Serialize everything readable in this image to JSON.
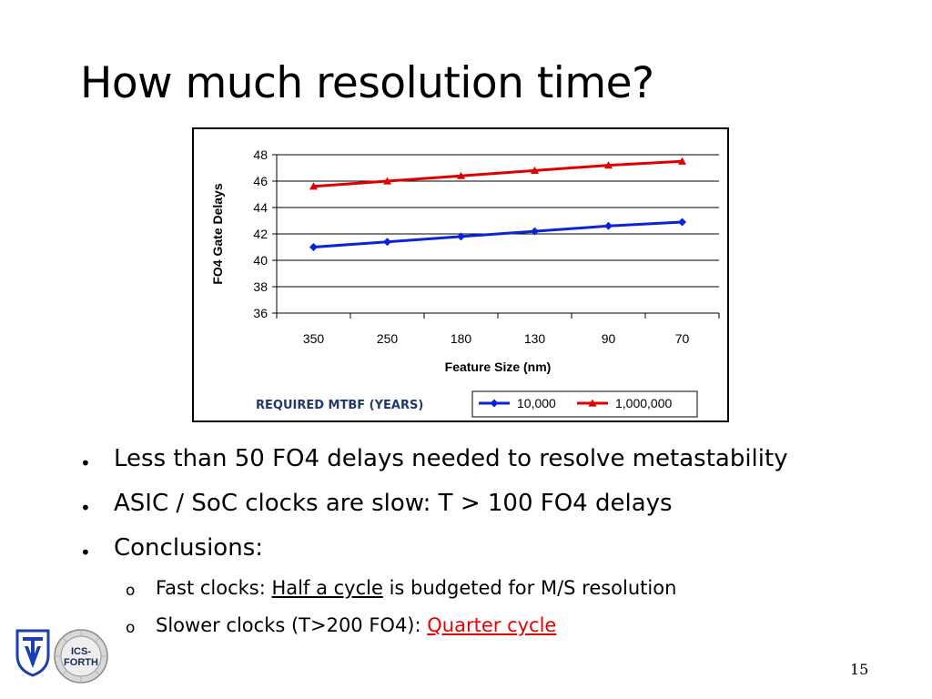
{
  "slide": {
    "title": "How much resolution time?",
    "page_number": "15",
    "colors": {
      "series_blue": "#0b24d8",
      "series_red": "#e00000",
      "legend_text": "#1f3a6e",
      "link_red": "#e60000"
    }
  },
  "bullets": [
    {
      "text": "Less than 50 FO4 delays needed to resolve metastability"
    },
    {
      "text": "ASIC / SoC clocks are slow: T > 100 FO4 delays"
    },
    {
      "text": "Conclusions:"
    }
  ],
  "sub_bullets": [
    {
      "prefix": "Fast clocks: ",
      "underlined": "Half a cycle",
      "suffix": " is budgeted for M/S resolution"
    },
    {
      "prefix": "Slower clocks (T>200 FO4): ",
      "underlined": "Quarter cycle",
      "suffix": ""
    }
  ],
  "logos": {
    "left": {
      "name": "technion-logo",
      "lettering": "T"
    },
    "right": {
      "name": "ics-forth-logo",
      "lettering": "ICS-FORTH",
      "line1": "ICS-",
      "line2": "FORTH"
    }
  },
  "chart_data": {
    "type": "line",
    "categories": [
      "350",
      "250",
      "180",
      "130",
      "90",
      "70"
    ],
    "xlabel": "Feature Size (nm)",
    "ylabel": "FO4 Gate Delays",
    "ylim": [
      36,
      48
    ],
    "yticks": [
      "36",
      "38",
      "40",
      "42",
      "44",
      "46",
      "48"
    ],
    "grid": true,
    "legend_title": "REQUIRED MTBF (YEARS)",
    "legend_position": "bottom",
    "series": [
      {
        "name": "10,000",
        "marker": "diamond",
        "color": "#0b24d8",
        "values": [
          41.0,
          41.4,
          41.8,
          42.2,
          42.6,
          42.9
        ]
      },
      {
        "name": "1,000,000",
        "marker": "triangle",
        "color": "#e00000",
        "values": [
          45.6,
          46.0,
          46.4,
          46.8,
          47.2,
          47.5
        ]
      }
    ]
  }
}
